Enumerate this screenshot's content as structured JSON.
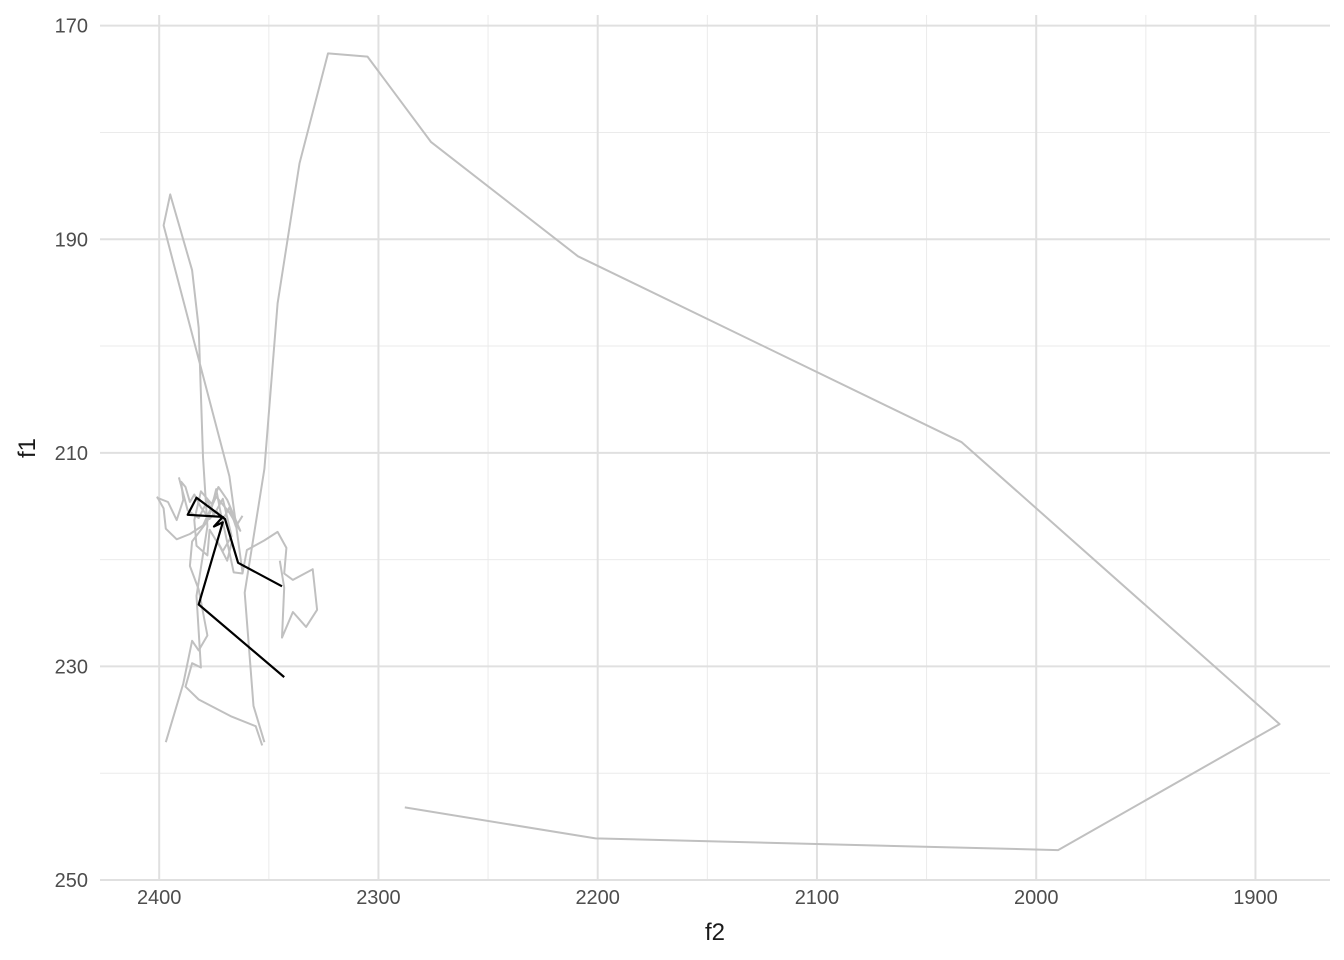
{
  "chart_data": {
    "type": "line",
    "title": "",
    "xlabel": "f2",
    "ylabel": "f1",
    "x_reversed": true,
    "y_reversed": true,
    "xlim": [
      2427,
      1866
    ],
    "ylim": [
      169,
      250
    ],
    "x_ticks": [
      2400,
      2300,
      2200,
      2100,
      2000,
      1900
    ],
    "y_ticks": [
      170,
      190,
      210,
      230,
      250
    ],
    "grid": true,
    "legend": "none",
    "series": [
      {
        "color": "#c0c0c0",
        "points": [
          [
            2288,
            243.2
          ],
          [
            2201,
            246.1
          ],
          [
            1990,
            247.2
          ],
          [
            1889,
            235.4
          ],
          [
            2034,
            209
          ],
          [
            2209,
            191.6
          ],
          [
            2276,
            180.9
          ],
          [
            2305,
            172.9
          ],
          [
            2323,
            172.6
          ],
          [
            2336,
            182.9
          ],
          [
            2346,
            196
          ],
          [
            2352,
            211.5
          ],
          [
            2361,
            223.1
          ],
          [
            2357,
            233.7
          ],
          [
            2352,
            237.1
          ]
        ]
      },
      {
        "color": "#c0c0c0",
        "points": [
          [
            2353,
            237.4
          ],
          [
            2356,
            235.6
          ],
          [
            2367,
            234.7
          ],
          [
            2382,
            233.1
          ],
          [
            2388,
            231.9
          ],
          [
            2385,
            229.7
          ],
          [
            2381,
            230.1
          ],
          [
            2383,
            223.4
          ],
          [
            2378,
            216.9
          ],
          [
            2380,
            210.4
          ],
          [
            2382,
            198.3
          ],
          [
            2385,
            192.9
          ],
          [
            2395,
            185.8
          ],
          [
            2398,
            188.7
          ],
          [
            2368,
            212.2
          ],
          [
            2362,
            221.2
          ]
        ]
      },
      {
        "color": "#c0c0c0",
        "points": [
          [
            2397,
            237.1
          ],
          [
            2389,
            231.6
          ],
          [
            2385,
            227.6
          ],
          [
            2382,
            228.5
          ],
          [
            2378,
            227.1
          ],
          [
            2382,
            222.8
          ],
          [
            2386,
            220.6
          ],
          [
            2385,
            218.3
          ],
          [
            2378,
            216.4
          ],
          [
            2376,
            215.1
          ],
          [
            2374,
            213.4
          ],
          [
            2372,
            215.6
          ],
          [
            2370,
            217.4
          ],
          [
            2368,
            219.3
          ],
          [
            2366,
            221.2
          ],
          [
            2362,
            221.3
          ],
          [
            2360,
            219.1
          ],
          [
            2352,
            218.2
          ],
          [
            2346,
            217.4
          ],
          [
            2342,
            218.9
          ],
          [
            2343,
            221.3
          ],
          [
            2339,
            221.9
          ],
          [
            2330,
            220.9
          ],
          [
            2328,
            224.7
          ],
          [
            2333,
            226.3
          ],
          [
            2339,
            224.9
          ],
          [
            2344,
            227.3
          ],
          [
            2343,
            222.6
          ],
          [
            2345,
            220.1
          ]
        ]
      },
      {
        "color": "#c0c0c0",
        "points": [
          [
            2401,
            214.1
          ],
          [
            2398,
            215.2
          ],
          [
            2397,
            217.1
          ],
          [
            2392,
            218.1
          ],
          [
            2386,
            217.6
          ],
          [
            2380,
            216.8
          ],
          [
            2374,
            214.1
          ],
          [
            2368,
            215.6
          ],
          [
            2363,
            217.3
          ],
          [
            2369,
            214.4
          ],
          [
            2373,
            213.2
          ],
          [
            2376,
            214.8
          ],
          [
            2381,
            213.6
          ],
          [
            2384,
            216.3
          ],
          [
            2383,
            218.7
          ],
          [
            2378,
            219.6
          ],
          [
            2377,
            217.2
          ],
          [
            2372,
            218.9
          ],
          [
            2369,
            220.1
          ],
          [
            2367,
            218.4
          ]
        ]
      },
      {
        "color": "#c0c0c0",
        "points": [
          [
            2401,
            214.2
          ],
          [
            2396,
            214.6
          ],
          [
            2392,
            216.3
          ],
          [
            2389,
            214.4
          ],
          [
            2390,
            212.7
          ],
          [
            2388,
            213.2
          ],
          [
            2386,
            214.6
          ],
          [
            2384,
            213.9
          ],
          [
            2381,
            215.1
          ],
          [
            2377,
            216.2
          ],
          [
            2374,
            215.4
          ],
          [
            2371,
            216.3
          ],
          [
            2368,
            215.1
          ],
          [
            2365,
            216.9
          ],
          [
            2362,
            215.9
          ]
        ]
      },
      {
        "color": "#c0c0c0",
        "points": [
          [
            2391,
            212.3
          ],
          [
            2387,
            215.4
          ],
          [
            2382,
            216.1
          ],
          [
            2378,
            214.5
          ],
          [
            2375,
            215.8
          ],
          [
            2371,
            214.3
          ],
          [
            2367,
            217.8
          ],
          [
            2371,
            219.2
          ],
          [
            2374,
            218.1
          ]
        ]
      },
      {
        "color": "#000000",
        "points": [
          [
            2343,
            231.0
          ],
          [
            2382,
            224.2
          ],
          [
            2371,
            216.5
          ],
          [
            2375,
            216.9
          ],
          [
            2371,
            216.0
          ],
          [
            2387,
            215.8
          ],
          [
            2383,
            214.2
          ],
          [
            2370,
            216.2
          ],
          [
            2364,
            220.3
          ],
          [
            2344,
            222.5
          ]
        ]
      }
    ]
  }
}
